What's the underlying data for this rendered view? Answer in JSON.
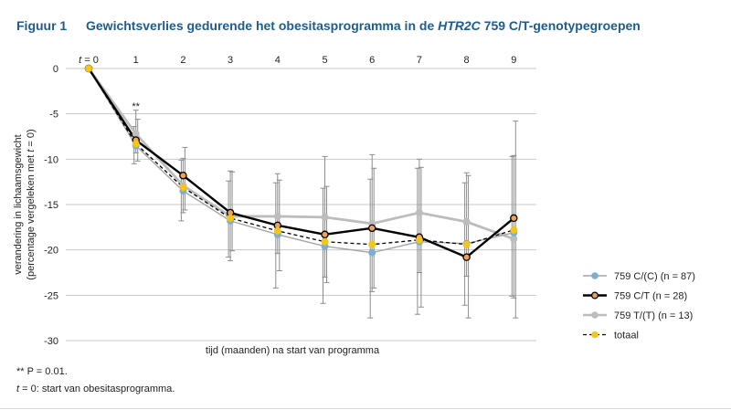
{
  "figure": {
    "number": "Figuur 1",
    "title_pre": "Gewichtsverlies gedurende het obesitasprogramma in de ",
    "title_gene": "HTR2C",
    "title_post": " 759 C/T-genotypegroepen"
  },
  "notes": {
    "significance": "** P = 0.01.",
    "t_var": "t",
    "t0": " = 0: start van obesitasprogramma."
  },
  "chart_data": {
    "type": "line",
    "x": [
      0,
      1,
      2,
      3,
      4,
      5,
      6,
      7,
      8,
      9
    ],
    "x_tick_labels": [
      "t = 0",
      "1",
      "2",
      "3",
      "4",
      "5",
      "6",
      "7",
      "8",
      "9"
    ],
    "ylim": [
      -30,
      0
    ],
    "y_ticks": [
      0,
      -5,
      -10,
      -15,
      -20,
      -25,
      -30
    ],
    "xlabel": "tijd (maanden) na start van programma",
    "ylabel_line1": "verandering in lichaamsgewicht",
    "ylabel_line2": "(percentage vergeleken met t = 0)",
    "annotation": {
      "x": 1,
      "text": "**"
    },
    "legend_position": "right",
    "grid": "horizontal",
    "series": [
      {
        "name": "759 C/(C) (n = 87)",
        "color": "#7bafd4",
        "line_color": "#a6a6a6",
        "line_width": 1.4,
        "dashed": false,
        "marker_stroke": "#7bafd4",
        "values": [
          0,
          -8.5,
          -13.5,
          -16.8,
          -18.3,
          -19.6,
          -20.3,
          -19.1,
          -19.3,
          -18.1
        ],
        "error": [
          [
            0,
            0
          ],
          [
            -10.5,
            -6.4
          ],
          [
            -16.8,
            -10.1
          ],
          [
            -20.8,
            -12.4
          ],
          [
            -24.2,
            -12.6
          ],
          [
            -25.9,
            -13.2
          ],
          [
            -27.5,
            -12.2
          ],
          [
            -27.1,
            -11.0
          ],
          [
            -26.1,
            -12.6
          ],
          [
            -25.1,
            -9.7
          ]
        ]
      },
      {
        "name": "759 C/T (n = 28)",
        "color": "#f0a058",
        "line_color": "#000000",
        "line_width": 2.4,
        "dashed": false,
        "marker_stroke": "#000000",
        "values": [
          0,
          -7.9,
          -11.8,
          -15.9,
          -17.3,
          -18.3,
          -17.6,
          -18.6,
          -20.8,
          -16.5
        ],
        "error": [
          [
            0,
            0
          ],
          [
            -10.2,
            -5.6
          ],
          [
            -15.6,
            -8.7
          ],
          [
            -20.1,
            -11.4
          ],
          [
            -22.3,
            -12.3
          ],
          [
            -23.6,
            -13.0
          ],
          [
            -24.2,
            -11.0
          ],
          [
            -26.3,
            -10.9
          ],
          [
            -27.5,
            -11.8
          ],
          [
            -27.5,
            -5.8
          ]
        ]
      },
      {
        "name": "759 T/(T) (n = 13)",
        "color": "#bdbdbd",
        "line_color": "#bdbdbd",
        "line_width": 2.8,
        "dashed": false,
        "marker_stroke": "#bdbdbd",
        "values": [
          0,
          -7.2,
          -12.9,
          -16.3,
          -16.3,
          -16.4,
          -17.1,
          -15.9,
          -16.9,
          -18.8
        ],
        "error": [
          [
            0,
            0
          ],
          [
            -9.3,
            -4.6
          ],
          [
            -15.9,
            -9.9
          ],
          [
            -21.2,
            -11.3
          ],
          [
            -20.4,
            -11.6
          ],
          [
            -23.0,
            -9.7
          ],
          [
            -24.6,
            -9.5
          ],
          [
            -22.5,
            -10.0
          ],
          [
            -22.9,
            -11.5
          ],
          [
            -25.3,
            -9.6
          ]
        ]
      },
      {
        "name": "totaal",
        "color": "#f5c518",
        "line_color": "#000000",
        "line_width": 1.3,
        "dashed": true,
        "marker_stroke": "#f5c518",
        "values": [
          0,
          -8.3,
          -13.1,
          -16.5,
          -17.9,
          -19.1,
          -19.4,
          -18.9,
          -19.4,
          -17.8
        ],
        "error": [
          [
            0,
            0
          ],
          [
            0,
            0
          ],
          [
            0,
            0
          ],
          [
            0,
            0
          ],
          [
            0,
            0
          ],
          [
            0,
            0
          ],
          [
            0,
            0
          ],
          [
            0,
            0
          ],
          [
            0,
            0
          ],
          [
            0,
            0
          ]
        ]
      }
    ]
  }
}
